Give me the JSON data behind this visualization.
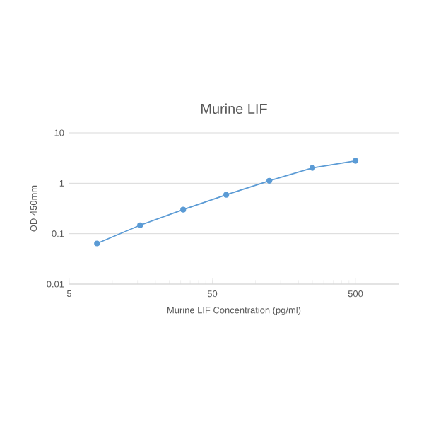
{
  "chart_data": {
    "type": "line",
    "title": "Murine LIF",
    "xlabel": "Murine LIF Concentration (pg/ml)",
    "ylabel": "OD 450mm",
    "x": [
      7.8125,
      15.625,
      31.25,
      62.5,
      125,
      250,
      500
    ],
    "series": [
      {
        "color": "#5b9bd5",
        "values": [
          0.064,
          0.147,
          0.3,
          0.59,
          1.12,
          2.02,
          2.79
        ]
      }
    ],
    "log": "xy",
    "xlim": [
      5,
      1000
    ],
    "ylim": [
      0.01,
      10
    ],
    "xticks": [
      5,
      50,
      500
    ],
    "yticks": [
      0.01,
      0.1,
      1,
      10
    ],
    "grid": "y",
    "marker": "circle",
    "line_style": "solid"
  }
}
